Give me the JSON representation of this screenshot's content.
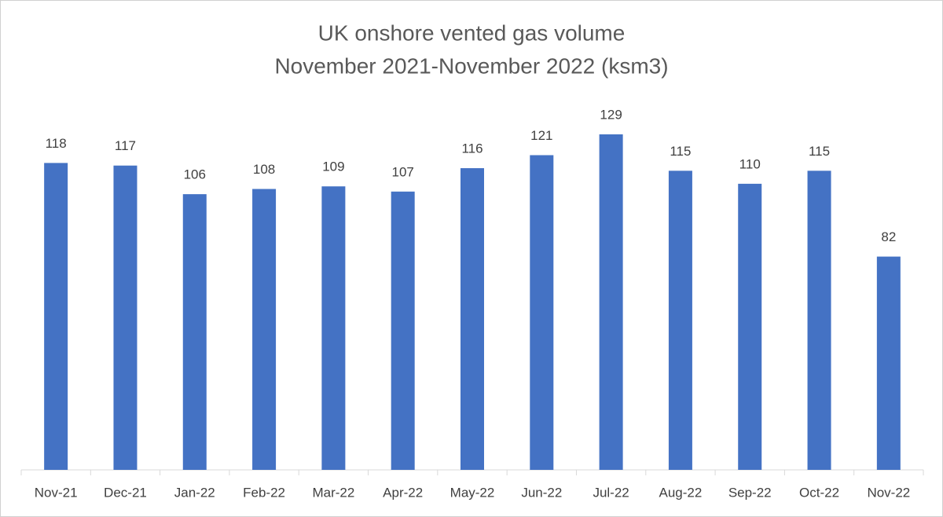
{
  "chart_data": {
    "type": "bar",
    "title": [
      "UK onshore vented gas volume",
      "November 2021-November  2022  (ksm3)"
    ],
    "categories": [
      "Nov-21",
      "Dec-21",
      "Jan-22",
      "Feb-22",
      "Mar-22",
      "Apr-22",
      "May-22",
      "Jun-22",
      "Jul-22",
      "Aug-22",
      "Sep-22",
      "Oct-22",
      "Nov-22"
    ],
    "values": [
      118,
      117,
      106,
      108,
      109,
      107,
      116,
      121,
      129,
      115,
      110,
      115,
      82
    ],
    "color": "#4472c4"
  }
}
